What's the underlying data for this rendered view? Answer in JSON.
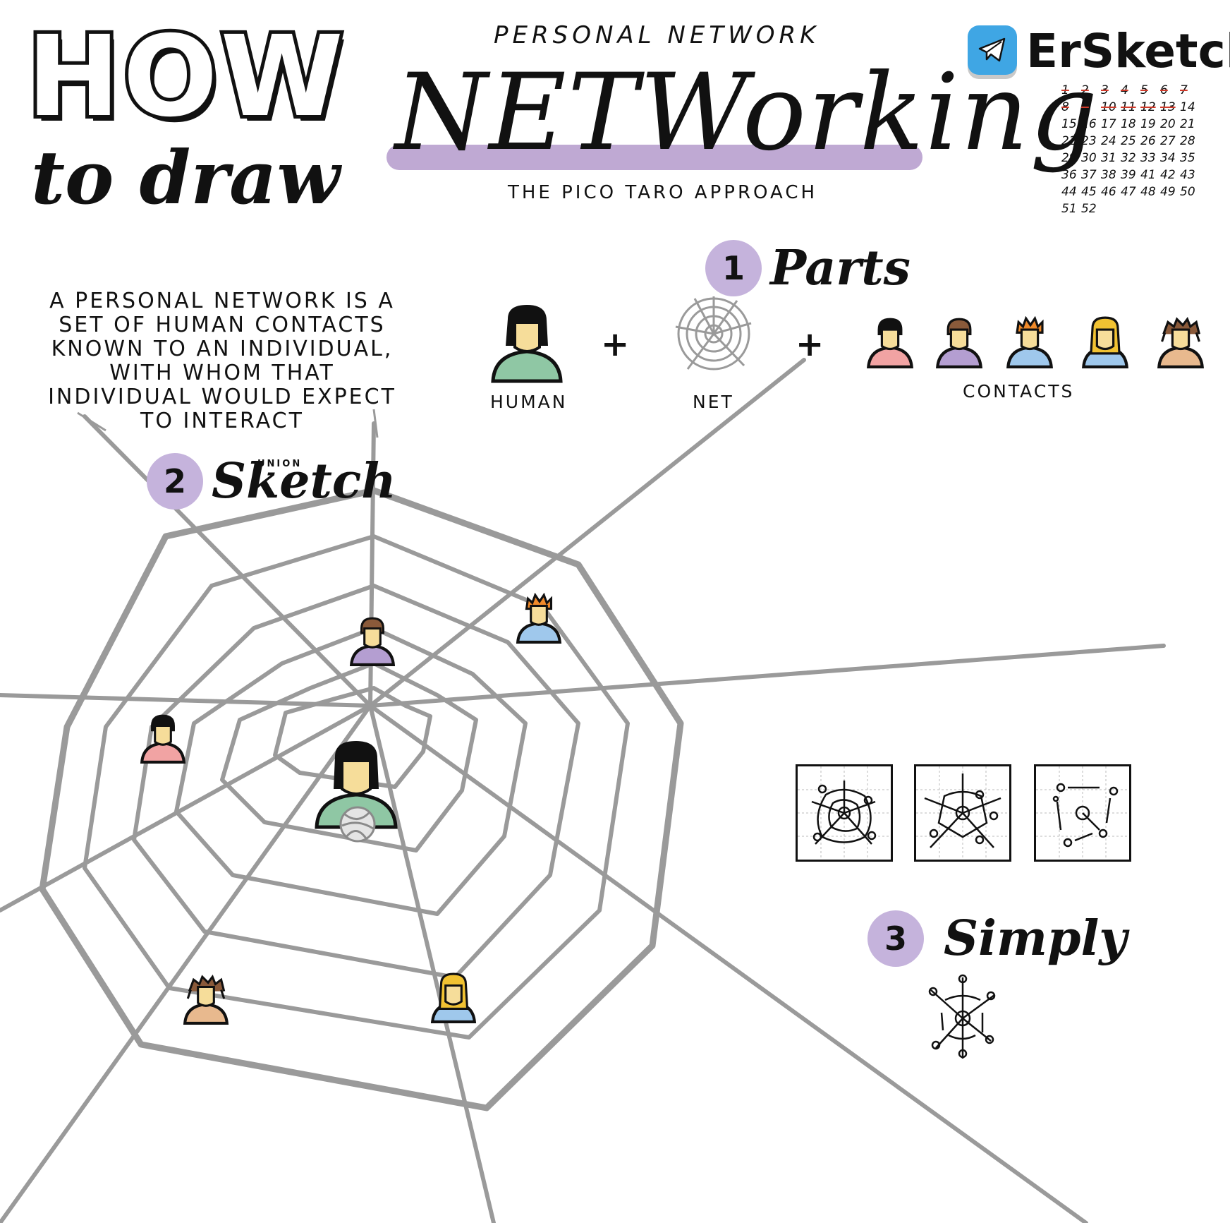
{
  "header": {
    "how": "HOW",
    "to_draw": "to draw",
    "kicker": "PERSONAL NETWORK",
    "title": "NETWorking",
    "subtitle": "THE PICO TARO APPROACH"
  },
  "brand": {
    "name": "ErSketch",
    "icon": "telegram-icon",
    "calendar_done": [
      "1",
      "2",
      "3",
      "4",
      "5",
      "6",
      "7",
      "8",
      "9",
      "10",
      "11",
      "12",
      "13"
    ],
    "calendar_rest": [
      "14",
      "15",
      "16",
      "17",
      "18",
      "19",
      "20",
      "21",
      "22",
      "23",
      "24",
      "25",
      "26",
      "27",
      "28",
      "29",
      "30",
      "31",
      "32",
      "33",
      "34",
      "35",
      "36",
      "37",
      "38",
      "39",
      "41",
      "42",
      "43",
      "44",
      "45",
      "46",
      "47",
      "48",
      "49",
      "50",
      "51",
      "52"
    ]
  },
  "definition": "A PERSONAL NETWORK IS A SET OF HUMAN CONTACTS KNOWN TO AN INDIVIDUAL, WITH WHOM THAT INDIVIDUAL WOULD EXPECT TO INTERACT",
  "steps": {
    "parts": {
      "number": "1",
      "title": "Parts"
    },
    "sketch": {
      "number": "2",
      "title": "Sketch",
      "tag": "UNION"
    },
    "simply": {
      "number": "3",
      "title": "Simply"
    }
  },
  "parts": {
    "human_label": "HUMAN",
    "net_label": "NET",
    "contacts_label": "CONTACTS",
    "plus_1": "+",
    "plus_2": "+"
  },
  "colors": {
    "accent_purple": "#c5b3dc",
    "web_gray": "#9a9a9a",
    "skin": "#f6dd9a",
    "human_shirt": "#8fc7a4",
    "contact_pink": "#f1a3a3",
    "contact_purple": "#b49ed1",
    "contact_blue": "#9fc8ec",
    "contact_tan": "#e8b98e",
    "telegram_blue": "#3fa6e4",
    "check_red": "#d13a2a"
  }
}
